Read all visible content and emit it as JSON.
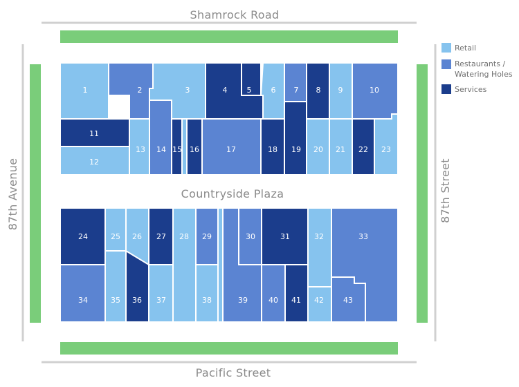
{
  "map": {
    "roads": {
      "north": "Shamrock Road",
      "south": "Pacific Street",
      "west": "87th Avenue",
      "east": "87th Street",
      "center": "Countryside Plaza"
    },
    "colors": {
      "retail": "#86c3ee",
      "restaurants": "#5b84d2",
      "services": "#1b3d8c",
      "green": "#7acd7a",
      "road_line": "#cccccc",
      "text": "#8a8a8a"
    },
    "legend": [
      {
        "key": "retail",
        "label": "Retail"
      },
      {
        "key": "restaurants",
        "label": "Restaurants /",
        "label2": "Watering Holes"
      },
      {
        "key": "services",
        "label": "Services"
      }
    ],
    "lots": [
      {
        "id": "1",
        "type": "retail"
      },
      {
        "id": "2",
        "type": "restaurants"
      },
      {
        "id": "3",
        "type": "retail"
      },
      {
        "id": "4",
        "type": "services"
      },
      {
        "id": "5",
        "type": "services"
      },
      {
        "id": "6",
        "type": "retail"
      },
      {
        "id": "7",
        "type": "restaurants"
      },
      {
        "id": "8",
        "type": "services"
      },
      {
        "id": "9",
        "type": "retail"
      },
      {
        "id": "10",
        "type": "restaurants"
      },
      {
        "id": "11",
        "type": "services"
      },
      {
        "id": "12",
        "type": "retail"
      },
      {
        "id": "13",
        "type": "retail"
      },
      {
        "id": "14",
        "type": "restaurants"
      },
      {
        "id": "15",
        "type": "services"
      },
      {
        "id": "16",
        "type": "services"
      },
      {
        "id": "17",
        "type": "restaurants"
      },
      {
        "id": "18",
        "type": "services"
      },
      {
        "id": "19",
        "type": "services"
      },
      {
        "id": "20",
        "type": "retail"
      },
      {
        "id": "21",
        "type": "retail"
      },
      {
        "id": "22",
        "type": "services"
      },
      {
        "id": "23",
        "type": "retail"
      },
      {
        "id": "24",
        "type": "services"
      },
      {
        "id": "25",
        "type": "retail"
      },
      {
        "id": "26",
        "type": "retail"
      },
      {
        "id": "27",
        "type": "services"
      },
      {
        "id": "28",
        "type": "retail"
      },
      {
        "id": "29",
        "type": "restaurants"
      },
      {
        "id": "30",
        "type": "restaurants"
      },
      {
        "id": "31",
        "type": "services"
      },
      {
        "id": "32",
        "type": "retail"
      },
      {
        "id": "33",
        "type": "restaurants"
      },
      {
        "id": "34",
        "type": "restaurants"
      },
      {
        "id": "35",
        "type": "retail"
      },
      {
        "id": "36",
        "type": "services"
      },
      {
        "id": "37",
        "type": "retail"
      },
      {
        "id": "38",
        "type": "retail"
      },
      {
        "id": "39",
        "type": "restaurants"
      },
      {
        "id": "40",
        "type": "restaurants"
      },
      {
        "id": "41",
        "type": "services"
      },
      {
        "id": "42",
        "type": "retail"
      },
      {
        "id": "43",
        "type": "restaurants"
      }
    ]
  }
}
